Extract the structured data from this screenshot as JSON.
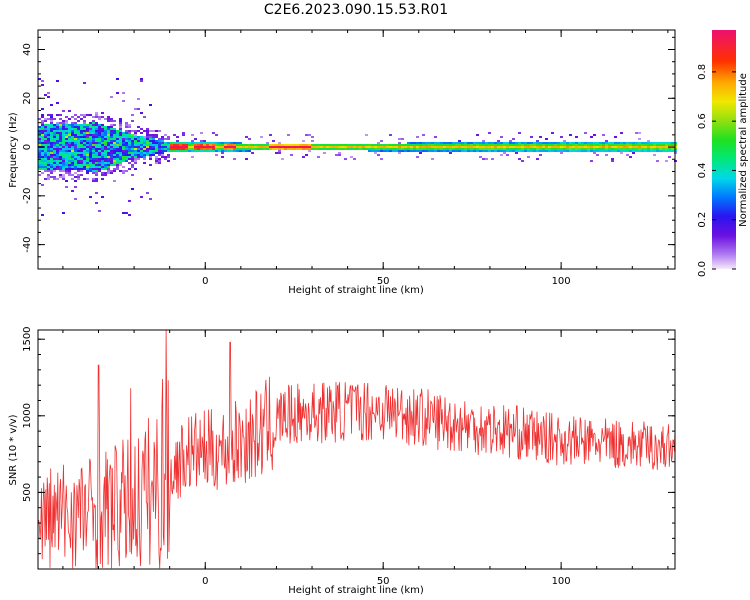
{
  "title": "C2E6.2023.090.15.53.R01",
  "chart_data": [
    {
      "type": "heatmap",
      "xlabel": "Height of straight line (km)",
      "ylabel": "Frequency (Hz)",
      "xlim": [
        -47,
        132
      ],
      "ylim": [
        -50,
        48
      ],
      "x_ticks": [
        0,
        50,
        100
      ],
      "y_ticks": [
        40,
        20,
        0,
        -20,
        -40
      ],
      "grid": false,
      "colorbar": {
        "label": "Normalized spectral amplitude",
        "range": [
          0,
          0.97
        ],
        "ticks": [
          0.0,
          0.2,
          0.4,
          0.6,
          0.8
        ],
        "tick_labels": [
          "0.0",
          "0.2",
          "0.4",
          "0.6",
          "0.8"
        ]
      },
      "description_of_signal": {
        "center_frequency_hz": 0,
        "band_halfwidth_hz_by_height": [
          [
            -47,
            9
          ],
          [
            -30,
            10
          ],
          [
            -20,
            5
          ],
          [
            -10,
            2
          ],
          [
            20,
            1.5
          ],
          [
            130,
            2
          ]
        ],
        "high_amplitude_segments_km": [
          [
            -10,
            -5
          ],
          [
            -3,
            3
          ],
          [
            5,
            9
          ],
          [
            18,
            30
          ]
        ],
        "high_amplitude_value": 0.95,
        "background_value": 0.05
      }
    },
    {
      "type": "line",
      "xlabel": "Height of straight line (km)",
      "ylabel": "SNR (10 * v/v)",
      "xlim": [
        -47,
        132
      ],
      "ylim": [
        0,
        1560
      ],
      "x_ticks": [
        0,
        50,
        100
      ],
      "y_ticks": [
        500,
        1000,
        1500
      ],
      "grid": false,
      "series": [
        {
          "color": "#f03030",
          "mean_envelope": [
            [
              -47,
              330
            ],
            [
              -30,
              380
            ],
            [
              -20,
              430
            ],
            [
              -12,
              560
            ],
            [
              -5,
              760
            ],
            [
              5,
              780
            ],
            [
              15,
              880
            ],
            [
              22,
              1000
            ],
            [
              35,
              1030
            ],
            [
              50,
              1040
            ],
            [
              70,
              950
            ],
            [
              85,
              900
            ],
            [
              100,
              840
            ],
            [
              132,
              790
            ]
          ],
          "spikes": [
            [
              -11,
              1560
            ],
            [
              -12,
              1240
            ],
            [
              7,
              1480
            ],
            [
              -30,
              1330
            ],
            [
              -21,
              1180
            ]
          ]
        }
      ]
    }
  ]
}
